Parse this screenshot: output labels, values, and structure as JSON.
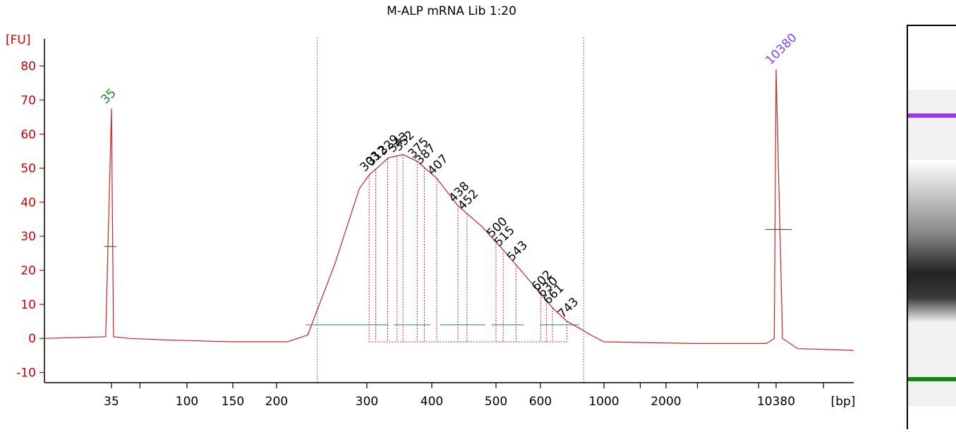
{
  "chart_data": {
    "type": "line",
    "title": "M-ALP mRNA Lib 1:20",
    "ylabel": "[FU]",
    "xlabel": "[bp]",
    "ylim": [
      -13,
      88
    ],
    "y_ticks": [
      "80",
      "70",
      "60",
      "50",
      "40",
      "30",
      "20",
      "10",
      "0",
      "-10"
    ],
    "x_ticks": [
      "35",
      "100",
      "150",
      "200",
      "300",
      "400",
      "500",
      "600",
      "1000",
      "2000",
      "10380"
    ],
    "colors": {
      "axis": "#cc0000",
      "trace": "#cc2222",
      "lower_marker": "#1a7f1a",
      "upper_marker": "#8a3ef0",
      "baseline": "#4f9a8a"
    },
    "marker_labels": [
      {
        "text": "35",
        "bp": 35,
        "fu": 67.5,
        "color": "#1a7f1a"
      },
      {
        "text": "10380",
        "bp": 10380,
        "fu": 79,
        "color": "#8a3ef0"
      }
    ],
    "peak_labels": [
      "303",
      "312",
      "329",
      "343",
      "352",
      "375",
      "387",
      "407",
      "438",
      "452",
      "500",
      "515",
      "543",
      "602",
      "630",
      "661",
      "743"
    ],
    "smear_region_bp": [
      240,
      850
    ],
    "series": [
      {
        "x": [
          25,
          34,
          35,
          36,
          45,
          80,
          150,
          210,
          230,
          260,
          290,
          303,
          330,
          352,
          375,
          407,
          438,
          475,
          515,
          560,
          602,
          661,
          743,
          820,
          900,
          1000,
          3000,
          9000,
          10100,
          10380,
          10700,
          11500,
          15000
        ],
        "y": [
          0,
          0.5,
          67.5,
          0.5,
          0,
          -0.5,
          -1,
          -1,
          1,
          22,
          44,
          48,
          53,
          54,
          52,
          47,
          39,
          33,
          26,
          19,
          13,
          9,
          5,
          3,
          1,
          -1,
          -1.5,
          -1.5,
          0,
          79,
          0,
          -3,
          -3.5
        ]
      }
    ]
  }
}
